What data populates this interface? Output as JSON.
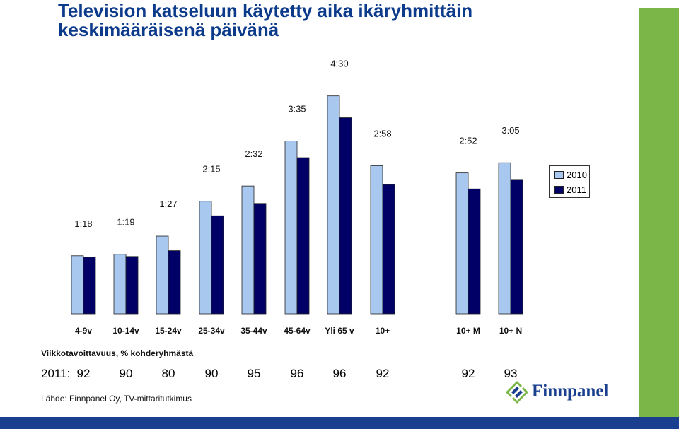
{
  "title_line1": "Television katseluun käytetty aika ikäryhmittäin",
  "title_line2": "keskimääräisenä päivänä",
  "chart_data": {
    "type": "bar",
    "categories": [
      "4-9v",
      "10-14v",
      "15-24v",
      "25-34v",
      "35-44v",
      "45-64v",
      "Yli 65 v",
      "10+",
      "10+ M",
      "10+ N"
    ],
    "data_labels": [
      "1:18",
      "1:19",
      "1:27",
      "2:15",
      "2:32",
      "3:35",
      "4:30",
      "2:58",
      "2:52",
      "3:05"
    ],
    "series": [
      {
        "name": "2010",
        "color": "#a9c8f0",
        "values": [
          80,
          82,
          107,
          155,
          176,
          238,
          300,
          204,
          194,
          208
        ]
      },
      {
        "name": "2011",
        "color": "#000066",
        "values": [
          78,
          79,
          87,
          135,
          152,
          215,
          270,
          178,
          172,
          185
        ]
      }
    ],
    "legend_position": "right",
    "grid": false
  },
  "footnote_label": "Viikkotavoittavuus, % kohderyhmästä",
  "reach": {
    "prefix": "2011:",
    "values": [
      "92",
      "90",
      "80",
      "90",
      "95",
      "96",
      "96",
      "92",
      "92",
      "93"
    ]
  },
  "source": "Lähde: Finnpanel Oy, TV-mittaritutkimus",
  "logo_text": "Finnpanel",
  "colors": {
    "title": "#0d3b8c",
    "green_bar": "#7ab648",
    "blue_strip": "#1a3f8f"
  }
}
